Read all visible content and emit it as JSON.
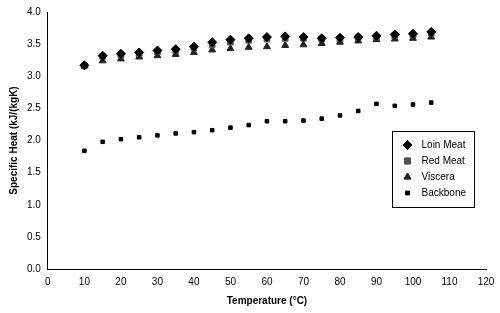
{
  "chart_data": {
    "type": "scatter",
    "x_label": "Temperature (°C)",
    "y_label": "Specific Heat (kJ/(kgK)",
    "x": [
      10,
      15,
      20,
      25,
      30,
      35,
      40,
      45,
      50,
      55,
      60,
      65,
      70,
      75,
      80,
      85,
      90,
      95,
      100,
      105
    ],
    "series": [
      {
        "name": "Loin Meat",
        "color": "#000000",
        "marker": "diamond",
        "values": [
          3.17,
          3.32,
          3.35,
          3.37,
          3.4,
          3.42,
          3.46,
          3.53,
          3.57,
          3.59,
          3.61,
          3.62,
          3.61,
          3.59,
          3.6,
          3.61,
          3.63,
          3.65,
          3.66,
          3.69
        ]
      },
      {
        "name": "Red Meat",
        "color": "#555555",
        "marker": "square",
        "values": [
          3.16,
          3.31,
          3.33,
          3.35,
          3.38,
          3.4,
          3.44,
          3.49,
          3.53,
          3.56,
          3.58,
          3.59,
          3.59,
          3.58,
          3.58,
          3.6,
          3.61,
          3.63,
          3.64,
          3.67
        ]
      },
      {
        "name": "Viscera",
        "color": "#222222",
        "marker": "triangle",
        "values": [
          3.17,
          3.24,
          3.27,
          3.3,
          3.32,
          3.34,
          3.37,
          3.41,
          3.43,
          3.45,
          3.46,
          3.48,
          3.49,
          3.51,
          3.53,
          3.55,
          3.57,
          3.58,
          3.59,
          3.61
        ]
      },
      {
        "name": "Backbone",
        "color": "#000000",
        "marker": "square",
        "values": [
          1.84,
          1.98,
          2.02,
          2.05,
          2.08,
          2.11,
          2.13,
          2.16,
          2.2,
          2.24,
          2.3,
          2.3,
          2.31,
          2.34,
          2.39,
          2.46,
          2.57,
          2.54,
          2.56,
          2.59
        ]
      }
    ],
    "xlim": [
      0,
      120
    ],
    "xticks": [
      0,
      10,
      20,
      30,
      40,
      50,
      60,
      70,
      80,
      90,
      100,
      110,
      120
    ],
    "ylim": [
      0,
      4
    ],
    "yticks": [
      {
        "value": 0,
        "label": "0.0"
      },
      {
        "value": 0.5,
        "label": "0.5"
      },
      {
        "value": 1,
        "label": "1.0"
      },
      {
        "value": 1.5,
        "label": "1.5"
      },
      {
        "value": 2,
        "label": "2.0"
      },
      {
        "value": 2.5,
        "label": "2.5"
      },
      {
        "value": 3,
        "label": "3.0"
      },
      {
        "value": 3.5,
        "label": "3.5"
      },
      {
        "value": 4,
        "label": "4.0"
      }
    ],
    "grid": false,
    "legend": "lower right"
  }
}
